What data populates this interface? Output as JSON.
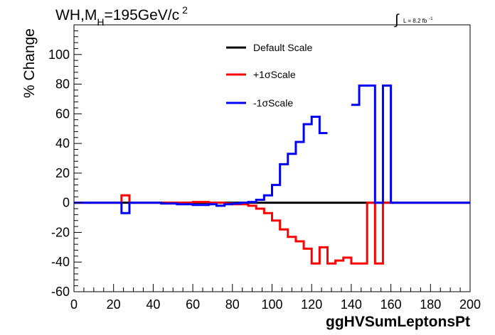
{
  "chart_data": {
    "type": "line",
    "title": "WH,M",
    "title_sub": "H",
    "title_rest": "=195GeV/c",
    "title_sup": "2",
    "lumi_label": "L = 8.2 fb",
    "lumi_sup": "-1",
    "xlabel": "ggHVSumLeptonsPt",
    "ylabel": "% Change",
    "xlim": [
      0,
      200
    ],
    "ylim": [
      -60,
      120
    ],
    "xticks": [
      "0",
      "20",
      "40",
      "60",
      "80",
      "100",
      "120",
      "140",
      "160",
      "180",
      "200"
    ],
    "yticks": [
      "-60",
      "-40",
      "-20",
      "0",
      "20",
      "40",
      "60",
      "80",
      "100"
    ],
    "legend_position": "top-center",
    "bin_edges": [
      0,
      4,
      8,
      12,
      16,
      20,
      24,
      28,
      32,
      36,
      40,
      44,
      48,
      52,
      56,
      60,
      64,
      68,
      72,
      76,
      80,
      84,
      88,
      92,
      96,
      100,
      104,
      108,
      112,
      116,
      120,
      124,
      128,
      132,
      136,
      140,
      144,
      148,
      152,
      156,
      160,
      164,
      168,
      172,
      176,
      180,
      184,
      188,
      192,
      196,
      200
    ],
    "series": [
      {
        "name": "Default Scale",
        "color": "#000000",
        "values": [
          0,
          0,
          0,
          0,
          0,
          0,
          0,
          0,
          0,
          0,
          0,
          0,
          0,
          0,
          0,
          0,
          0,
          0,
          0,
          0,
          0,
          0,
          0,
          0,
          0,
          0,
          0,
          0,
          0,
          0,
          0,
          0,
          0,
          0,
          0,
          0,
          0,
          0,
          0,
          0,
          0,
          0,
          0,
          0,
          0,
          0,
          0,
          0,
          0,
          0
        ]
      },
      {
        "name": "+1σScale",
        "color": "#ff0000",
        "values": [
          0,
          0,
          0,
          0,
          0,
          0,
          5,
          0,
          0,
          0,
          0,
          0,
          0,
          0,
          0,
          0.5,
          0.5,
          0,
          0,
          -0.5,
          -1,
          -1,
          -2,
          -4,
          -7,
          -12,
          -18,
          -23,
          -26,
          -31,
          -41,
          -30,
          -41,
          -39,
          -37,
          -41,
          -41,
          0,
          -41,
          0,
          0,
          0,
          0,
          0,
          0,
          0,
          0,
          0,
          0,
          0
        ]
      },
      {
        "name": "-1σScale",
        "color": "#0000ff",
        "values": [
          0,
          0,
          0,
          0,
          0,
          0,
          -7,
          0,
          0,
          0,
          0,
          -0.5,
          -0.5,
          -1,
          -1,
          -1.5,
          -1.5,
          -1,
          -2,
          -1,
          -0.5,
          0,
          0.5,
          2,
          5,
          12,
          26,
          33,
          41,
          53,
          58,
          47,
          null,
          null,
          null,
          66,
          79,
          79,
          0,
          79,
          0,
          0,
          0,
          0,
          0,
          0,
          0,
          0,
          0,
          0
        ]
      }
    ]
  }
}
